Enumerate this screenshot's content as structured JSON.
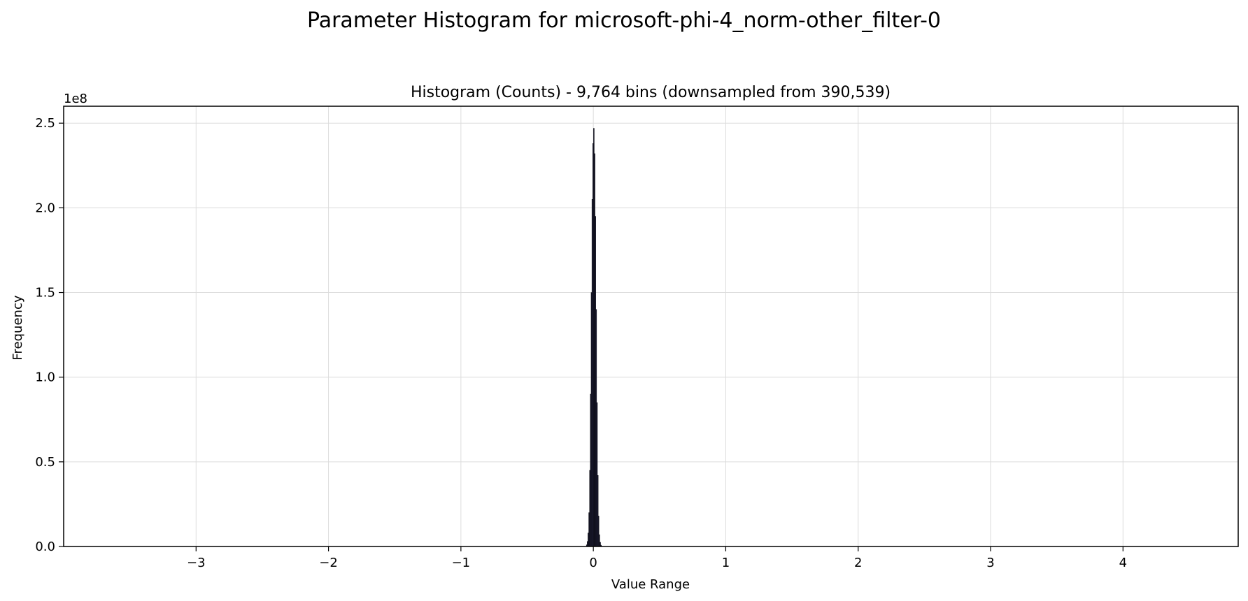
{
  "figure_title": "Parameter Histogram for microsoft-phi-4_norm-other_filter-0",
  "chart_data": {
    "type": "bar",
    "title": "Histogram (Counts) - 9,764 bins (downsampled from 390,539)",
    "xlabel": "Value Range",
    "ylabel": "Frequency",
    "y_offset_label": "1e8",
    "xlim": [
      -4.0,
      4.87
    ],
    "ylim": [
      0,
      260000000
    ],
    "x_ticks": [
      -3,
      -2,
      -1,
      0,
      1,
      2,
      3,
      4
    ],
    "x_tick_labels": [
      "−3",
      "−2",
      "−1",
      "0",
      "1",
      "2",
      "3",
      "4"
    ],
    "y_ticks": [
      0,
      50000000,
      100000000,
      150000000,
      200000000,
      250000000
    ],
    "y_tick_labels": [
      "0.0",
      "0.5",
      "1.0",
      "1.5",
      "2.0",
      "2.5"
    ],
    "grid": true,
    "bar_color": "#1f1f3a",
    "bin_width": 0.006,
    "bins_x": [
      -0.05,
      -0.044,
      -0.038,
      -0.032,
      -0.026,
      -0.02,
      -0.014,
      -0.008,
      -0.002,
      0.004,
      0.01,
      0.016,
      0.022,
      0.028,
      0.034,
      0.04,
      0.046,
      0.052,
      0.058,
      0.064
    ],
    "bins_count": [
      1000000,
      3000000,
      8000000,
      20000000,
      45000000,
      90000000,
      150000000,
      205000000,
      238000000,
      247000000,
      232000000,
      195000000,
      140000000,
      85000000,
      42000000,
      18000000,
      7000000,
      2500000,
      800000,
      200000
    ]
  }
}
